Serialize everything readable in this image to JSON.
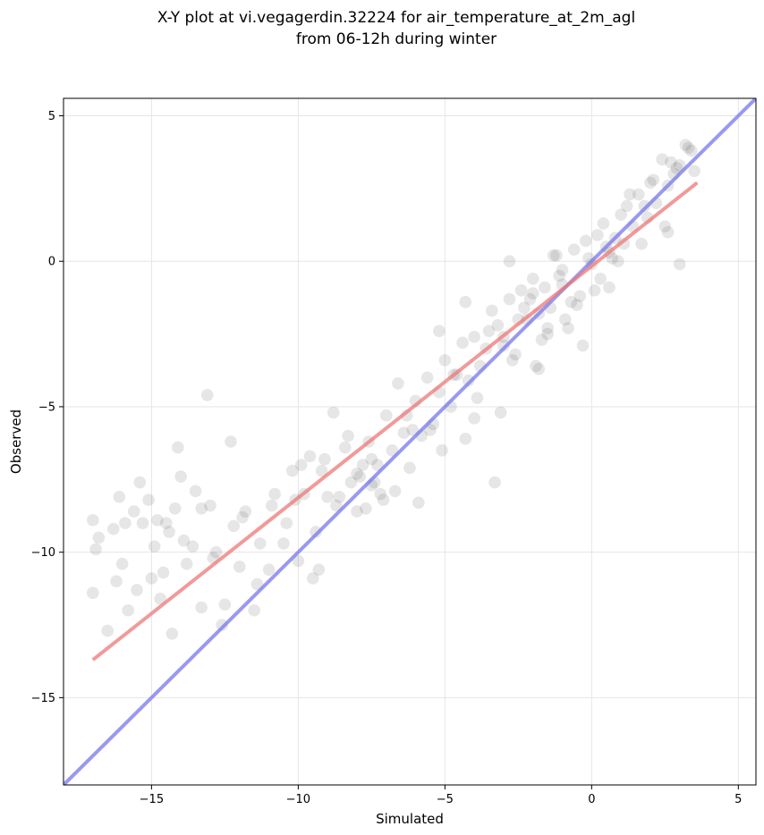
{
  "chart_data": {
    "type": "scatter",
    "title_line1": "X-Y plot at vi.vegagerdin.32224 for air_temperature_at_2m_agl",
    "title_line2": "from 06-12h during winter",
    "xlabel": "Simulated",
    "ylabel": "Observed",
    "xlim": [
      -18.0,
      5.6
    ],
    "ylim": [
      -18.0,
      5.6
    ],
    "xticks": [
      -15,
      -10,
      -5,
      0,
      5
    ],
    "yticks": [
      -15,
      -10,
      -5,
      0,
      5
    ],
    "xtick_labels": [
      "−15",
      "−10",
      "−5",
      "0",
      "5"
    ],
    "ytick_labels": [
      "−15",
      "−10",
      "−5",
      "0",
      "5"
    ],
    "grid": true,
    "point_color": "#333333",
    "point_alpha": 0.12,
    "lines": [
      {
        "x": [
          -18.0,
          5.6
        ],
        "y": [
          -18.0,
          5.6
        ],
        "color": "#7777ee"
      },
      {
        "x": [
          -17.0,
          3.6
        ],
        "y": [
          -13.7,
          2.7
        ],
        "color": "#ee7777"
      }
    ],
    "series": [
      {
        "x": [
          -17.0,
          -17.0,
          -16.8,
          -16.5,
          -16.3,
          -16.2,
          -16.0,
          -15.9,
          -15.8,
          -15.6,
          -15.5,
          -15.3,
          -15.1,
          -15.0,
          -14.9,
          -14.8,
          -14.6,
          -14.4,
          -14.3,
          -14.2,
          -14.0,
          -13.8,
          -13.6,
          -13.3,
          -13.1,
          -13.0,
          -12.8,
          -12.5,
          -12.2,
          -12.0,
          -11.8,
          -11.5,
          -11.3,
          -11.0,
          -10.8,
          -10.5,
          -10.2,
          -10.0,
          -9.8,
          -9.6,
          -9.4,
          -9.2,
          -9.0,
          -8.8,
          -8.6,
          -8.4,
          -8.2,
          -8.0,
          -7.8,
          -7.6,
          -7.4,
          -7.3,
          -7.2,
          -7.0,
          -6.8,
          -6.6,
          -6.4,
          -6.2,
          -6.0,
          -5.8,
          -5.6,
          -5.4,
          -5.2,
          -5.0,
          -4.8,
          -4.6,
          -4.4,
          -4.2,
          -4.0,
          -3.8,
          -3.6,
          -3.4,
          -3.2,
          -3.0,
          -2.8,
          -2.6,
          -2.4,
          -2.2,
          -2.0,
          -1.8,
          -1.6,
          -1.4,
          -1.2,
          -1.0,
          -0.8,
          -0.6,
          -0.4,
          -0.2,
          0.0,
          0.2,
          0.4,
          0.6,
          0.8,
          1.0,
          1.2,
          1.4,
          1.6,
          1.8,
          2.0,
          2.2,
          2.4,
          2.6,
          2.8,
          3.0,
          3.2,
          3.4,
          3.5,
          -16.9,
          -16.1,
          -15.4,
          -14.7,
          -14.5,
          -13.9,
          -13.5,
          -12.9,
          -12.3,
          -11.9,
          -11.4,
          -10.9,
          -10.4,
          -9.9,
          -9.5,
          -9.1,
          -8.7,
          -8.3,
          -7.9,
          -7.5,
          -7.1,
          -6.7,
          -6.3,
          -5.9,
          -5.5,
          -5.1,
          -4.7,
          -4.3,
          -3.9,
          -3.5,
          -3.1,
          -2.7,
          -2.3,
          -1.9,
          -1.5,
          -1.1,
          -0.7,
          -0.3,
          0.1,
          0.5,
          0.9,
          1.3,
          1.7,
          2.1,
          2.5,
          2.9,
          3.3,
          -2.5,
          -2.0,
          -1.5,
          -1.0,
          -0.5,
          0.3,
          0.7,
          -3.0,
          -7.5,
          -7.7,
          -8.0,
          -1.7,
          -1.3,
          -2.1,
          -0.9,
          -0.1,
          0.6,
          1.1,
          1.9,
          2.7,
          -4.3,
          -5.2,
          -6.1,
          -9.3,
          -10.1,
          -12.6,
          -14.1,
          -13.3,
          -3.3,
          -4.0,
          3.0,
          2.6,
          -2.8,
          -1.8
        ],
        "y": [
          -8.9,
          -11.4,
          -9.5,
          -12.7,
          -9.2,
          -11.0,
          -10.4,
          -9.0,
          -12.0,
          -8.6,
          -11.3,
          -9.0,
          -8.2,
          -10.9,
          -9.8,
          -8.9,
          -10.7,
          -9.3,
          -12.8,
          -8.5,
          -7.4,
          -10.4,
          -9.8,
          -11.9,
          -4.6,
          -8.4,
          -10.0,
          -11.8,
          -9.1,
          -10.5,
          -8.6,
          -12.0,
          -9.7,
          -10.6,
          -8.0,
          -9.7,
          -7.2,
          -10.3,
          -8.0,
          -6.7,
          -9.3,
          -7.2,
          -8.1,
          -5.2,
          -8.1,
          -6.4,
          -7.6,
          -8.6,
          -7.0,
          -6.2,
          -7.6,
          -7.0,
          -8.0,
          -5.3,
          -6.5,
          -4.2,
          -5.9,
          -7.1,
          -4.8,
          -6.0,
          -4.0,
          -5.6,
          -4.5,
          -3.4,
          -5.0,
          -3.9,
          -2.8,
          -4.1,
          -2.6,
          -3.6,
          -3.0,
          -1.7,
          -2.2,
          -2.6,
          -1.3,
          -3.2,
          -1.0,
          -2.0,
          -0.6,
          -1.8,
          -0.9,
          -1.6,
          0.2,
          -0.8,
          -2.3,
          0.4,
          -1.2,
          0.7,
          -0.1,
          0.9,
          1.3,
          0.3,
          0.8,
          1.6,
          1.9,
          1.2,
          2.3,
          1.9,
          2.7,
          2.0,
          3.5,
          2.6,
          3.0,
          3.3,
          4.0,
          3.8,
          3.1,
          -9.9,
          -8.1,
          -7.6,
          -11.6,
          -9.0,
          -9.6,
          -7.9,
          -10.2,
          -6.2,
          -8.8,
          -11.1,
          -8.4,
          -9.0,
          -7.0,
          -10.9,
          -6.8,
          -8.4,
          -6.0,
          -7.4,
          -6.8,
          -8.2,
          -7.9,
          -5.3,
          -8.3,
          -5.8,
          -6.5,
          -3.9,
          -6.1,
          -4.7,
          -2.4,
          -5.2,
          -3.4,
          -1.6,
          -3.6,
          -2.3,
          -0.5,
          -1.4,
          -2.9,
          -1.0,
          0.5,
          0.0,
          2.3,
          0.6,
          2.8,
          1.2,
          3.2,
          3.9,
          -2.0,
          -1.1,
          -2.5,
          -0.3,
          -1.5,
          -0.6,
          0.1,
          -2.9,
          -7.7,
          -8.5,
          -7.3,
          -2.7,
          0.2,
          -1.3,
          -2.0,
          0.1,
          -0.9,
          0.6,
          1.5,
          3.4,
          -1.4,
          -2.4,
          -5.8,
          -10.6,
          -8.2,
          -12.5,
          -6.4,
          -8.5,
          -7.6,
          -5.4,
          -0.1,
          1.0,
          0.0,
          -3.7
        ]
      }
    ]
  }
}
